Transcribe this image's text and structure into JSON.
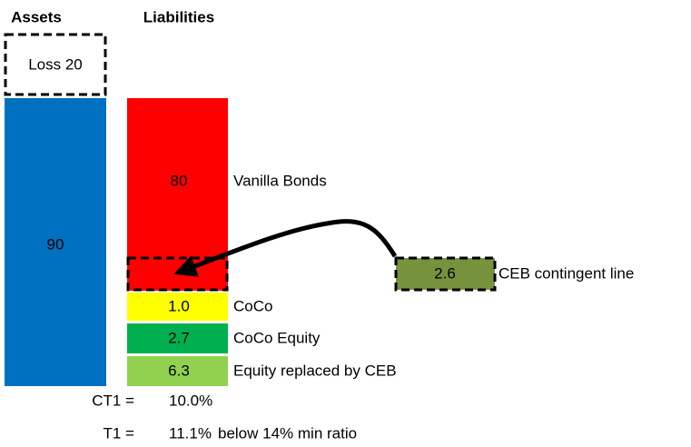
{
  "headers": {
    "assets": "Assets",
    "liabilities": "Liabilities"
  },
  "assets": {
    "loss": "Loss 20",
    "total": "90"
  },
  "liabilities": [
    {
      "value": "80",
      "label": "Vanilla Bonds"
    },
    {
      "value": "1.0",
      "label": "CoCo"
    },
    {
      "value": "2.7",
      "label": "CoCo Equity"
    },
    {
      "value": "6.3",
      "label": "Equity replaced by CEB"
    }
  ],
  "ceb": {
    "value": "2.6",
    "label": "CEB contingent line"
  },
  "ratios": [
    {
      "name": "CT1 =",
      "value": "10.0%",
      "note": null
    },
    {
      "name": "T1 =",
      "value": "11.1%",
      "note": "below 14% min ratio"
    }
  ]
}
